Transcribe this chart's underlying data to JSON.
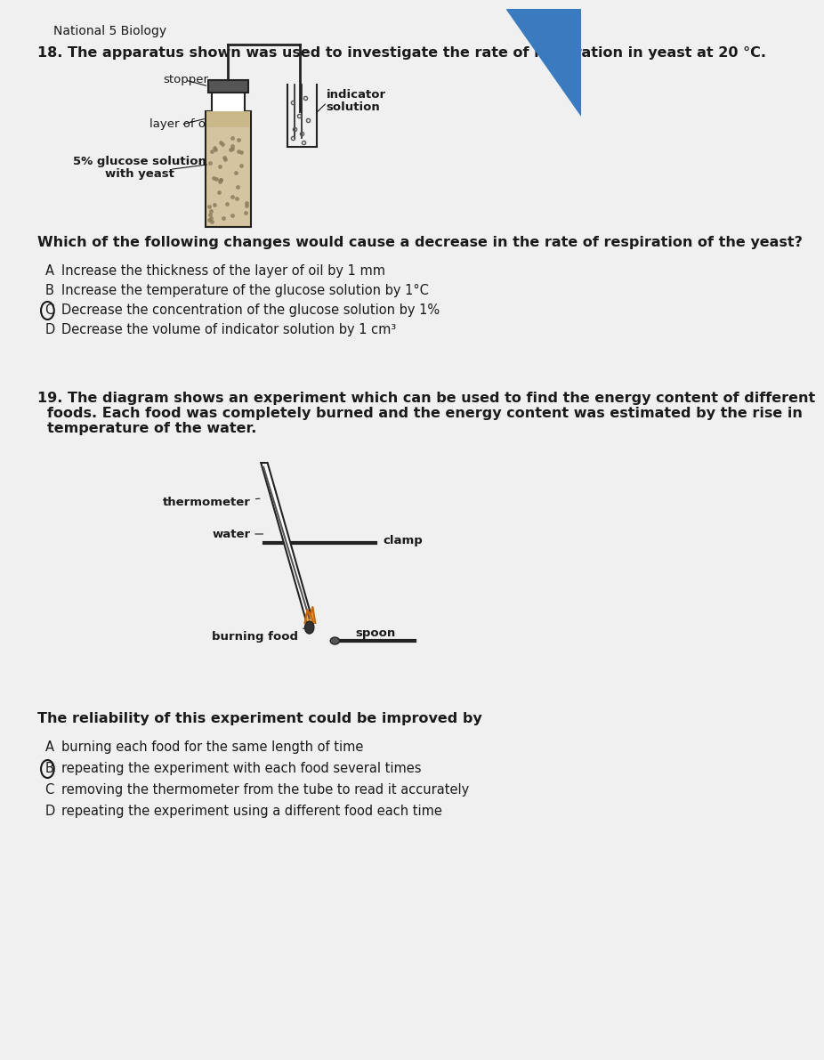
{
  "bg_color": "#d8d8d8",
  "page_bg": "#f0f0f0",
  "title": "National 5 Biology",
  "q18_text": "18. The apparatus shown was used to investigate the rate of respiration in yeast at 20 °C.",
  "q18_question": "Which of the following changes would cause a decrease in the rate of respiration of the yeast?",
  "q18_options": [
    [
      "A",
      "Increase the thickness of the layer of oil by 1 mm"
    ],
    [
      "B",
      "Increase the temperature of the glucose solution by 1°C"
    ],
    [
      "C",
      "Decrease the concentration of the glucose solution by 1%"
    ],
    [
      "D",
      "Decrease the volume of indicator solution by 1 cm³"
    ]
  ],
  "q18_circled": "C",
  "q19_text_line1": "19. The diagram shows an experiment which can be used to find the energy content of different",
  "q19_text_line2": "    foods. Each food was completely burned and the energy content was estimated by the rise in",
  "q19_text_line3": "    temperature of the water.",
  "q19_question": "The reliability of this experiment could be improved by",
  "q19_options": [
    [
      "A",
      "burning each food for the same length of time"
    ],
    [
      "B",
      "repeating the experiment with each food several times"
    ],
    [
      "C",
      "removing the thermometer from the tube to read it accurately"
    ],
    [
      "D",
      "repeating the experiment using a different food each time"
    ]
  ],
  "q19_circled": "B",
  "text_color": "#1a1a1a",
  "circle_color": "#1a1a1a"
}
